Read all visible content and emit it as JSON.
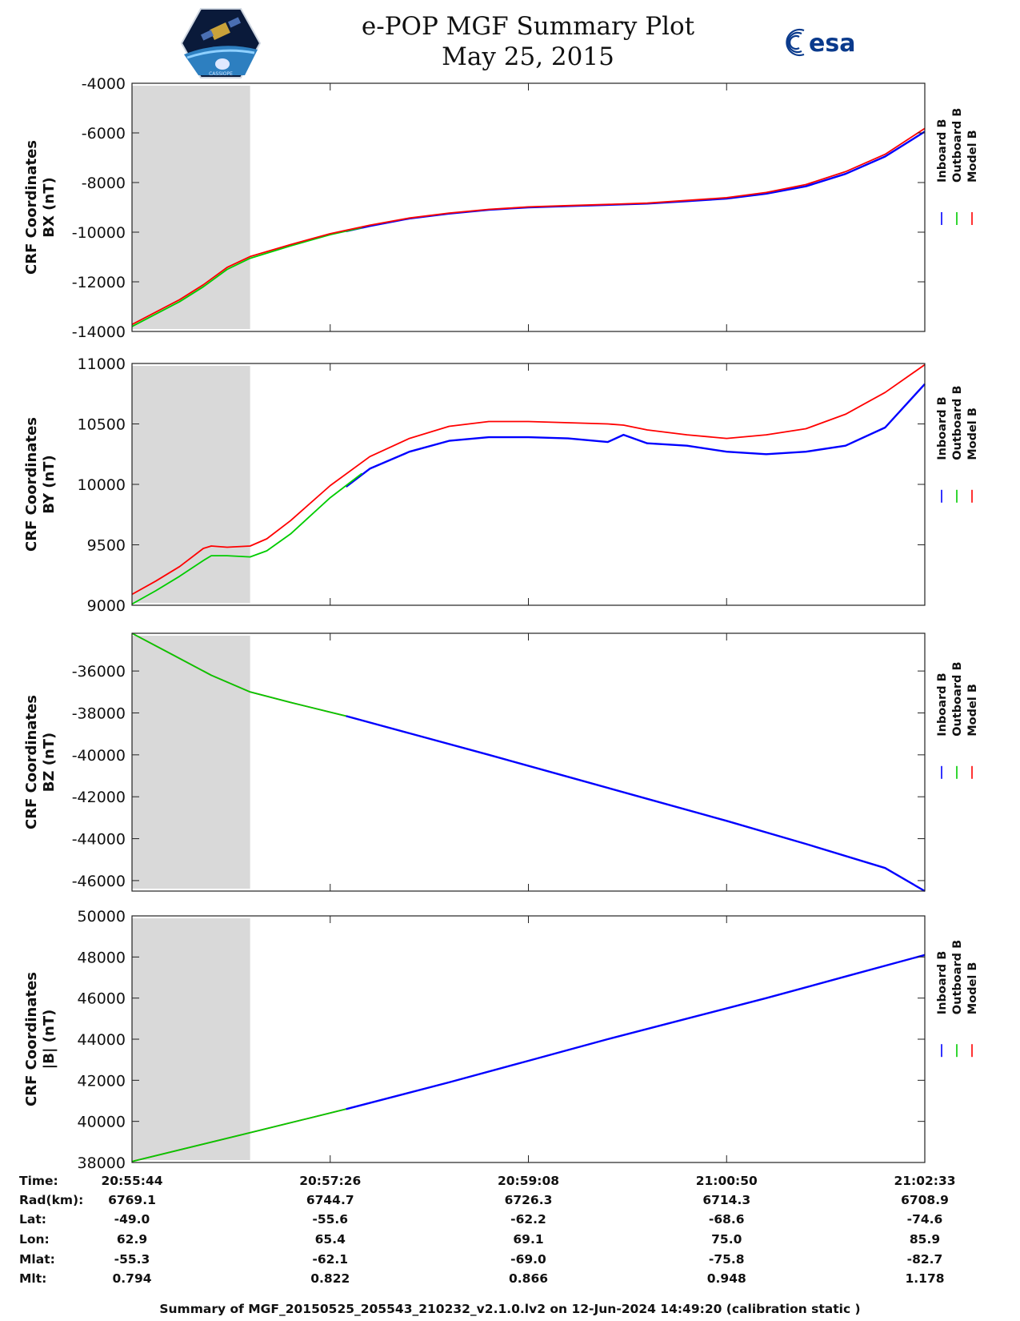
{
  "title": {
    "line1": "e-POP MGF Summary Plot",
    "line2": "May 25, 2015"
  },
  "logos": {
    "left": "CASSIOPE mission logo",
    "right_text": "esa"
  },
  "colors": {
    "inboard": "#0000ff",
    "outboard": "#00cc00",
    "model": "#ff0000",
    "shade": "#d9d9d9"
  },
  "chart_data": [
    {
      "type": "line",
      "name": "bx",
      "ylabel": [
        "CRF Coordinates",
        "BX (nT)"
      ],
      "ylim": [
        -14000,
        -4000
      ],
      "yticks": [
        -4000,
        -6000,
        -8000,
        -10000,
        -12000,
        -14000
      ],
      "legend": [
        "Inboard B",
        "Outboard B",
        "Model B"
      ],
      "shade_x": [
        0,
        0.149
      ],
      "x": [
        0,
        0.03,
        0.06,
        0.09,
        0.12,
        0.149,
        0.2,
        0.25,
        0.3,
        0.35,
        0.4,
        0.45,
        0.5,
        0.55,
        0.6,
        0.65,
        0.7,
        0.75,
        0.8,
        0.85,
        0.9,
        0.95,
        1.0
      ],
      "series": [
        {
          "name": "Inboard B",
          "from": 0.27,
          "values": [
            -13800,
            -13300,
            -12800,
            -12200,
            -11500,
            -11050,
            -10550,
            -10100,
            -9750,
            -9450,
            -9250,
            -9100,
            -9000,
            -8950,
            -8900,
            -8850,
            -8750,
            -8650,
            -8450,
            -8150,
            -7650,
            -6950,
            -5950
          ]
        },
        {
          "name": "Outboard B",
          "to": 0.29,
          "values": [
            -13800,
            -13300,
            -12800,
            -12200,
            -11500,
            -11050,
            -10550,
            -10100,
            -9750,
            -9450,
            -9250,
            -9100,
            -9000,
            -8950,
            -8900,
            -8850,
            -8750,
            -8650,
            -8450,
            -8150,
            -7650,
            -6950,
            -5950
          ]
        },
        {
          "name": "Model B",
          "values": [
            -13720,
            -13220,
            -12720,
            -12120,
            -11420,
            -10980,
            -10500,
            -10060,
            -9720,
            -9430,
            -9230,
            -9080,
            -8980,
            -8930,
            -8880,
            -8830,
            -8720,
            -8610,
            -8400,
            -8080,
            -7560,
            -6860,
            -5820
          ]
        }
      ]
    },
    {
      "type": "line",
      "name": "by",
      "ylabel": [
        "CRF Coordinates",
        "BY (nT)"
      ],
      "ylim": [
        9000,
        11000
      ],
      "yticks": [
        11000,
        10500,
        10000,
        9500,
        9000
      ],
      "legend": [
        "Inboard B",
        "Outboard B",
        "Model B"
      ],
      "shade_x": [
        0,
        0.149
      ],
      "x": [
        0,
        0.03,
        0.06,
        0.09,
        0.1,
        0.12,
        0.149,
        0.17,
        0.2,
        0.25,
        0.3,
        0.35,
        0.4,
        0.45,
        0.5,
        0.55,
        0.6,
        0.62,
        0.65,
        0.7,
        0.75,
        0.8,
        0.85,
        0.9,
        0.95,
        1.0
      ],
      "series": [
        {
          "name": "Inboard B",
          "from": 0.27,
          "values": [
            9000,
            9110,
            9230,
            9360,
            9400,
            9400,
            9390,
            9440,
            9580,
            9880,
            10130,
            10270,
            10360,
            10390,
            10390,
            10380,
            10350,
            10410,
            10340,
            10320,
            10270,
            10250,
            10270,
            10320,
            10470,
            10830
          ]
        },
        {
          "name": "Outboard B",
          "to": 0.29,
          "values": [
            9010,
            9120,
            9240,
            9370,
            9410,
            9410,
            9400,
            9450,
            9590,
            9890,
            10140,
            10280,
            10370,
            10400,
            10400,
            10390,
            10360,
            10420,
            10350,
            10330,
            10280,
            10260,
            10280,
            10330,
            10480,
            10840
          ]
        },
        {
          "name": "Model B",
          "values": [
            9090,
            9200,
            9320,
            9470,
            9490,
            9480,
            9490,
            9550,
            9700,
            9990,
            10230,
            10380,
            10480,
            10520,
            10520,
            10510,
            10500,
            10490,
            10450,
            10410,
            10380,
            10410,
            10460,
            10580,
            10760,
            10990
          ]
        }
      ]
    },
    {
      "type": "line",
      "name": "bz",
      "ylabel": [
        "CRF Coordinates",
        "BZ (nT)"
      ],
      "ylim": [
        -46500,
        -34200
      ],
      "yticks": [
        -36000,
        -38000,
        -40000,
        -42000,
        -44000,
        -46000
      ],
      "legend": [
        "Inboard B",
        "Outboard B",
        "Model B"
      ],
      "shade_x": [
        0,
        0.149
      ],
      "x": [
        0,
        0.05,
        0.1,
        0.149,
        0.2,
        0.27,
        0.35,
        0.45,
        0.55,
        0.65,
        0.75,
        0.85,
        0.95,
        1.0
      ],
      "series": [
        {
          "name": "Model B",
          "values": [
            -34200,
            -35200,
            -36200,
            -37000,
            -37500,
            -38150,
            -38970,
            -40000,
            -41050,
            -42100,
            -43150,
            -44250,
            -45400,
            -46500
          ]
        },
        {
          "name": "Outboard B",
          "to": 0.27,
          "values": [
            -34200,
            -35200,
            -36200,
            -37000,
            -37500,
            -38150,
            -38970,
            -40000,
            -41050,
            -42100,
            -43150,
            -44250,
            -45400,
            -46500
          ]
        },
        {
          "name": "Inboard B",
          "from": 0.27,
          "values": [
            -34200,
            -35200,
            -36200,
            -37000,
            -37500,
            -38150,
            -38970,
            -40000,
            -41050,
            -42100,
            -43150,
            -44250,
            -45400,
            -46500
          ]
        }
      ]
    },
    {
      "type": "line",
      "name": "bmag",
      "ylabel": [
        "CRF Coordinates",
        "|B| (nT)"
      ],
      "ylim": [
        38000,
        50000
      ],
      "yticks": [
        50000,
        48000,
        46000,
        44000,
        42000,
        40000,
        38000
      ],
      "legend": [
        "Inboard B",
        "Outboard B",
        "Model B"
      ],
      "shade_x": [
        0,
        0.149
      ],
      "x": [
        0,
        0.149,
        0.27,
        0.4,
        0.5,
        0.6,
        0.7,
        0.8,
        0.9,
        1.0
      ],
      "series": [
        {
          "name": "Model B",
          "values": [
            38050,
            39450,
            40600,
            41900,
            42950,
            44000,
            45000,
            46000,
            47050,
            48100
          ]
        },
        {
          "name": "Outboard B",
          "to": 0.27,
          "values": [
            38050,
            39450,
            40600,
            41900,
            42950,
            44000,
            45000,
            46000,
            47050,
            48100
          ]
        },
        {
          "name": "Inboard B",
          "from": 0.27,
          "values": [
            38050,
            39450,
            40600,
            41900,
            42950,
            44000,
            45000,
            46000,
            47050,
            48100
          ]
        }
      ]
    }
  ],
  "axis_table": {
    "row_labels": [
      "Time:",
      "Rad(km):",
      "Lat:",
      "Lon:",
      "Mlat:",
      "Mlt:"
    ],
    "columns": [
      [
        "20:55:44",
        "6769.1",
        "-49.0",
        "62.9",
        "-55.3",
        "0.794"
      ],
      [
        "20:57:26",
        "6744.7",
        "-55.6",
        "65.4",
        "-62.1",
        "0.822"
      ],
      [
        "20:59:08",
        "6726.3",
        "-62.2",
        "69.1",
        "-69.0",
        "0.866"
      ],
      [
        "21:00:50",
        "6714.3",
        "-68.6",
        "75.0",
        "-75.8",
        "0.948"
      ],
      [
        "21:02:33",
        "6708.9",
        "-74.6",
        "85.9",
        "-82.7",
        "1.178"
      ]
    ]
  },
  "footer": "Summary of MGF_20150525_205543_210232_v2.1.0.lv2 on 12-Jun-2024 14:49:20 (calibration static )"
}
